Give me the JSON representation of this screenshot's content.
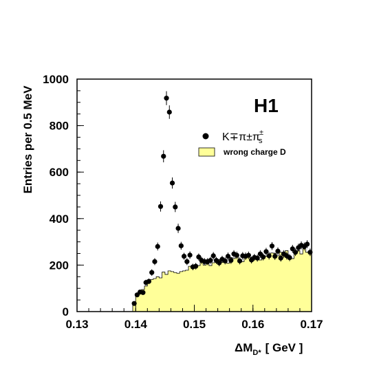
{
  "chart_data": {
    "type": "scatter",
    "title": "H1",
    "xlabel_main": "ΔM",
    "xlabel_sub": "D*",
    "xlabel_unit": "[ GeV ]",
    "ylabel": "Entries per 0.5 MeV",
    "xlim": [
      0.13,
      0.17
    ],
    "ylim": [
      0,
      1000
    ],
    "x_ticks": [
      "0.13",
      "0.14",
      "0.15",
      "0.16",
      "0.17"
    ],
    "y_ticks": [
      "0",
      "200",
      "400",
      "600",
      "800",
      "1000"
    ],
    "legend": {
      "signal_label": "K∓π±π",
      "signal_sup": "±",
      "signal_sub": "s",
      "background_label": "wrong charge D"
    },
    "colors": {
      "background_fill": "#ffff99",
      "points": "#000000"
    },
    "signal": {
      "name": "K∓π±πs±",
      "x": [
        0.13975,
        0.14025,
        0.14075,
        0.14125,
        0.14175,
        0.14225,
        0.14275,
        0.14325,
        0.14375,
        0.14425,
        0.14475,
        0.14525,
        0.14575,
        0.14625,
        0.14675,
        0.14725,
        0.14775,
        0.14825,
        0.14875,
        0.14925,
        0.14975,
        0.15025,
        0.15075,
        0.15125,
        0.15175,
        0.15225,
        0.15275,
        0.15325,
        0.15375,
        0.15425,
        0.15475,
        0.15525,
        0.15575,
        0.15625,
        0.15675,
        0.15725,
        0.15775,
        0.15825,
        0.15875,
        0.15925,
        0.15975,
        0.16025,
        0.16075,
        0.16125,
        0.16175,
        0.16225,
        0.16275,
        0.16325,
        0.16375,
        0.16425,
        0.16475,
        0.16525,
        0.16575,
        0.16625,
        0.16675,
        0.16725,
        0.16775,
        0.16825,
        0.16875,
        0.16925,
        0.16975
      ],
      "y": [
        35,
        72,
        84,
        82,
        125,
        130,
        168,
        215,
        280,
        452,
        668,
        918,
        858,
        553,
        450,
        358,
        283,
        238,
        215,
        243,
        192,
        195,
        235,
        220,
        215,
        215,
        220,
        240,
        220,
        210,
        225,
        218,
        238,
        220,
        248,
        242,
        218,
        240,
        238,
        242,
        222,
        233,
        230,
        248,
        235,
        258,
        240,
        282,
        238,
        260,
        230,
        248,
        240,
        232,
        270,
        255,
        275,
        285,
        280,
        290,
        255
      ],
      "err": [
        8,
        10,
        10,
        10,
        12,
        12,
        14,
        15,
        17,
        22,
        26,
        30,
        29,
        24,
        22,
        20,
        17,
        15,
        15,
        16,
        14,
        14,
        15,
        15,
        15,
        15,
        15,
        16,
        15,
        15,
        15,
        15,
        16,
        15,
        16,
        16,
        15,
        16,
        16,
        16,
        15,
        15,
        15,
        16,
        15,
        16,
        16,
        17,
        16,
        16,
        15,
        16,
        16,
        15,
        17,
        16,
        17,
        17,
        17,
        17,
        16
      ]
    },
    "background": {
      "name": "wrong charge D",
      "bin_width": 0.0005,
      "x_start": 0.1395,
      "values": [
        40,
        72,
        90,
        95,
        110,
        128,
        138,
        142,
        150,
        145,
        170,
        160,
        175,
        172,
        168,
        165,
        172,
        175,
        178,
        195,
        192,
        190,
        198,
        212,
        200,
        205,
        198,
        210,
        218,
        224,
        212,
        215,
        208,
        232,
        228,
        235,
        220,
        215,
        230,
        238,
        232,
        235,
        228,
        222,
        240,
        238,
        245,
        252,
        250,
        240,
        255,
        242,
        262,
        238,
        228,
        250,
        262,
        248,
        270,
        255,
        248
      ]
    }
  }
}
